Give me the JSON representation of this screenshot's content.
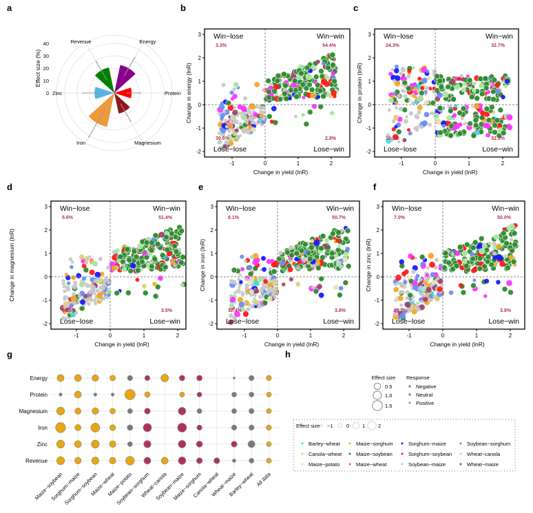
{
  "panel_labels": [
    "a",
    "b",
    "c",
    "d",
    "e",
    "f",
    "g",
    "h"
  ],
  "chart_data": [
    {
      "id": "a",
      "type": "polar-bar",
      "ylabel": "Effect size (%)",
      "ticks": [
        "0",
        "10",
        "20",
        "30",
        "40"
      ],
      "tick_values": [
        0,
        10,
        20,
        30,
        40
      ],
      "categories": [
        "Energy",
        "Protein",
        "Magnesium",
        "Iron",
        "Zinc",
        "Revenue"
      ],
      "values": [
        23,
        14,
        17,
        28,
        16,
        21
      ],
      "error_lower": [
        16,
        10,
        10,
        15,
        8,
        12
      ],
      "error_upper": [
        33,
        21,
        26,
        41,
        25,
        29
      ],
      "colors": [
        "#8b008b",
        "#ff0000",
        "#8b1a1a",
        "#f0993a",
        "#56b4e9",
        "#008000"
      ]
    },
    {
      "id": "b",
      "type": "scatter",
      "xlabel": "Change in yield (lnR)",
      "ylabel": "Change in energy (lnR)",
      "xlim": [
        -1.8,
        2.5
      ],
      "ylim": [
        -2.2,
        3.2
      ],
      "xticks": [
        "-1",
        "0",
        "1",
        "2"
      ],
      "xtick_values": [
        -1,
        0,
        1,
        2
      ],
      "yticks": [
        "-2",
        "-1",
        "0",
        "1",
        "2",
        "3"
      ],
      "ytick_values": [
        -2,
        -1,
        0,
        1,
        2,
        3
      ],
      "quadrants": {
        "win_lose": {
          "label": "Win−lose",
          "pct": "3.3%"
        },
        "win_win": {
          "label": "Win−win",
          "pct": "54.4%"
        },
        "lose_lose": {
          "label": "Lose−lose",
          "pct": "39.6%"
        },
        "lose_win": {
          "label": "Lose−win",
          "pct": "2.8%"
        }
      },
      "fractions": {
        "win_lose": 0.033,
        "win_win": 0.544,
        "lose_lose": 0.396,
        "lose_win": 0.028
      }
    },
    {
      "id": "c",
      "type": "scatter",
      "xlabel": "Change in yield (lnR)",
      "ylabel": "Change in protein (lnR)",
      "xlim": [
        -1.8,
        2.5
      ],
      "ylim": [
        -2.2,
        3.2
      ],
      "xticks": [
        "-1",
        "0",
        "1",
        "2"
      ],
      "xtick_values": [
        -1,
        0,
        1,
        2
      ],
      "yticks": [
        "-2",
        "-1",
        "0",
        "1",
        "2",
        "3"
      ],
      "ytick_values": [
        -2,
        -1,
        0,
        1,
        2,
        3
      ],
      "quadrants": {
        "win_lose": {
          "label": "Win−lose",
          "pct": "24.3%"
        },
        "win_win": {
          "label": "Win−win",
          "pct": "32.7%"
        },
        "lose_lose": {
          "label": "Lose−lose",
          "pct": "10.5%"
        },
        "lose_win": {
          "label": "Lose−win",
          "pct": "32.5%"
        }
      },
      "fractions": {
        "win_lose": 0.243,
        "win_win": 0.327,
        "lose_lose": 0.105,
        "lose_win": 0.325
      }
    },
    {
      "id": "d",
      "type": "scatter",
      "xlabel": "Change in yield (lnR)",
      "ylabel": "Change in magnesium (lnR)",
      "xlim": [
        -1.8,
        2.5
      ],
      "ylim": [
        -2.2,
        3.2
      ],
      "xticks": [
        "-1",
        "0",
        "1",
        "2"
      ],
      "xtick_values": [
        -1,
        0,
        1,
        2
      ],
      "yticks": [
        "-2",
        "-1",
        "0",
        "1",
        "2",
        "3"
      ],
      "ytick_values": [
        -2,
        -1,
        0,
        1,
        2,
        3
      ],
      "quadrants": {
        "win_lose": {
          "label": "Win−lose",
          "pct": "5.6%"
        },
        "win_win": {
          "label": "Win−win",
          "pct": "51.4%"
        },
        "lose_lose": {
          "label": "Lose−lose",
          "pct": "39.5%"
        },
        "lose_win": {
          "label": "Lose−win",
          "pct": "3.5%"
        }
      },
      "fractions": {
        "win_lose": 0.056,
        "win_win": 0.514,
        "lose_lose": 0.395,
        "lose_win": 0.035
      }
    },
    {
      "id": "e",
      "type": "scatter",
      "xlabel": "Change in yield (lnR)",
      "ylabel": "Change in iron (lnR)",
      "xlim": [
        -1.8,
        2.5
      ],
      "ylim": [
        -2.2,
        3.2
      ],
      "xticks": [
        "-1",
        "0",
        "1",
        "2"
      ],
      "xtick_values": [
        -1,
        0,
        1,
        2
      ],
      "yticks": [
        "-2",
        "-1",
        "0",
        "1",
        "2",
        "3"
      ],
      "ytick_values": [
        -2,
        -1,
        0,
        1,
        2,
        3
      ],
      "quadrants": {
        "win_lose": {
          "label": "Win−lose",
          "pct": "8.1%"
        },
        "win_win": {
          "label": "Win−win",
          "pct": "50.7%"
        },
        "lose_lose": {
          "label": "Lose−lose",
          "pct": "37.4%"
        },
        "lose_win": {
          "label": "Lose−win",
          "pct": "3.8%"
        }
      },
      "fractions": {
        "win_lose": 0.081,
        "win_win": 0.507,
        "lose_lose": 0.374,
        "lose_win": 0.038
      }
    },
    {
      "id": "f",
      "type": "scatter",
      "xlabel": "Change in yield (lnR)",
      "ylabel": "Change in zinc (lnR)",
      "xlim": [
        -1.8,
        2.5
      ],
      "ylim": [
        -2.2,
        3.2
      ],
      "xticks": [
        "-1",
        "0",
        "1",
        "2"
      ],
      "xtick_values": [
        -1,
        0,
        1,
        2
      ],
      "yticks": [
        "-2",
        "-1",
        "0",
        "1",
        "2",
        "3"
      ],
      "ytick_values": [
        -2,
        -1,
        0,
        1,
        2,
        3
      ],
      "quadrants": {
        "win_lose": {
          "label": "Win−lose",
          "pct": "7.0%"
        },
        "win_win": {
          "label": "Win−win",
          "pct": "50.0%"
        },
        "lose_lose": {
          "label": "Lose−lose",
          "pct": "39.2%"
        },
        "lose_win": {
          "label": "Lose−win",
          "pct": "3.8%"
        }
      },
      "fractions": {
        "win_lose": 0.07,
        "win_win": 0.5,
        "lose_lose": 0.392,
        "lose_win": 0.038
      }
    },
    {
      "id": "g",
      "type": "bubble",
      "rows": [
        "Energy",
        "Protein",
        "Magnesium",
        "Iron",
        "Zinc",
        "Revenue"
      ],
      "columns": [
        "Maize−soybean",
        "Sorghum−maize",
        "Sorghum−soybean",
        "Maize−wheat",
        "Maize−potato",
        "Soybean−sorghum",
        "Wheat−canola",
        "Soybean−maize",
        "Maize−sorghum",
        "Canola−wheat",
        "Wheat−maize",
        "Barley−wheat",
        "All data"
      ],
      "effect_size": [
        [
          0.6,
          0.6,
          0.5,
          0.2,
          0.1,
          0.1,
          0.8,
          0.2,
          0.2,
          null,
          -0.9,
          0.1,
          0.1
        ],
        [
          -0.5,
          0.6,
          -0.5,
          -0.5,
          1.6,
          0.2,
          null,
          0.0,
          0.0,
          null,
          0.0,
          0.0,
          0.0
        ],
        [
          0.9,
          0.4,
          0.5,
          0.2,
          0.0,
          0.3,
          null,
          0.8,
          0.0,
          null,
          0.0,
          0.1,
          0.0
        ],
        [
          1.5,
          0.4,
          1.2,
          0.3,
          0.2,
          1.0,
          null,
          1.2,
          0.1,
          null,
          0.1,
          0.1,
          0.1
        ],
        [
          0.9,
          0.6,
          0.9,
          0.5,
          0.0,
          0.7,
          null,
          0.8,
          0.4,
          null,
          0.3,
          0.6,
          0.0
        ],
        [
          0.9,
          0.5,
          0.7,
          0.5,
          1.1,
          0.6,
          0.6,
          0.8,
          0.3,
          0.3,
          -0.4,
          0.0,
          0.0
        ]
      ],
      "response": [
        [
          "pos",
          "pos",
          "pos",
          "pos",
          "neu",
          "neg",
          "pos",
          "neg",
          "neg",
          null,
          "neu",
          "neu",
          "pos"
        ],
        [
          "neu",
          "pos",
          "neu",
          "neu",
          "pos",
          "pos",
          null,
          "pos",
          "neg",
          null,
          "neu",
          "neu",
          "pos"
        ],
        [
          "pos",
          "pos",
          "pos",
          "pos",
          "neu",
          "neg",
          null,
          "neg",
          "neu",
          null,
          "neu",
          "neu",
          "pos"
        ],
        [
          "pos",
          "pos",
          "pos",
          "pos",
          "neu",
          "neg",
          null,
          "neg",
          "neg",
          null,
          "neu",
          "neu",
          "pos"
        ],
        [
          "pos",
          "pos",
          "pos",
          "pos",
          "neu",
          "neg",
          null,
          "neg",
          "neg",
          null,
          "neg",
          "neu",
          "pos"
        ],
        [
          "pos",
          "pos",
          "pos",
          "pos",
          "pos",
          "neg",
          "pos",
          "neg",
          "neg",
          "neg",
          "neu",
          "neu",
          "pos"
        ]
      ],
      "response_colors": {
        "pos": "#e9a70f",
        "neu": "#7a7a7a",
        "neg": "#b3305a"
      }
    }
  ],
  "legend_g": {
    "effect_title": "Effect size",
    "effect_items": [
      {
        "label": "0.5",
        "value": 0.5
      },
      {
        "label": "1.0",
        "value": 1.0
      },
      {
        "label": "1.5",
        "value": 1.5
      }
    ],
    "response_title": "Response",
    "response_items": [
      {
        "label": "Negative",
        "color": "#9a6a70"
      },
      {
        "label": "Neutral",
        "color": "#777777"
      },
      {
        "label": "Positive",
        "color": "#b99a50"
      }
    ]
  },
  "legend_h": {
    "effect_title": "Effect size",
    "effect_items": [
      {
        "label": "−1",
        "value": -1
      },
      {
        "label": "0",
        "value": 0
      },
      {
        "label": "1",
        "value": 1
      },
      {
        "label": "2",
        "value": 2
      }
    ],
    "groups": [
      {
        "label": "Barley−wheat",
        "color": "#33e0e0"
      },
      {
        "label": "Canola−wheat",
        "color": "#e0cc80"
      },
      {
        "label": "Maize−potato",
        "color": "#e8e0b8"
      },
      {
        "label": "Maize−sorghum",
        "color": "#f5a623"
      },
      {
        "label": "Maize−soybean",
        "color": "#2e8b2e"
      },
      {
        "label": "Maize−wheat",
        "color": "#ff33ff"
      },
      {
        "label": "Sorghum−maize",
        "color": "#1a1aff"
      },
      {
        "label": "Sorghum−soybean",
        "color": "#ff1a1a"
      },
      {
        "label": "Soybean−maize",
        "color": "#c8c8c8"
      },
      {
        "label": "Soybean−sorghum",
        "color": "#6a8ef0"
      },
      {
        "label": "Wheat−canola",
        "color": "#a8e6a0"
      },
      {
        "label": "Wheat−maize",
        "color": "#a0456a"
      }
    ]
  }
}
